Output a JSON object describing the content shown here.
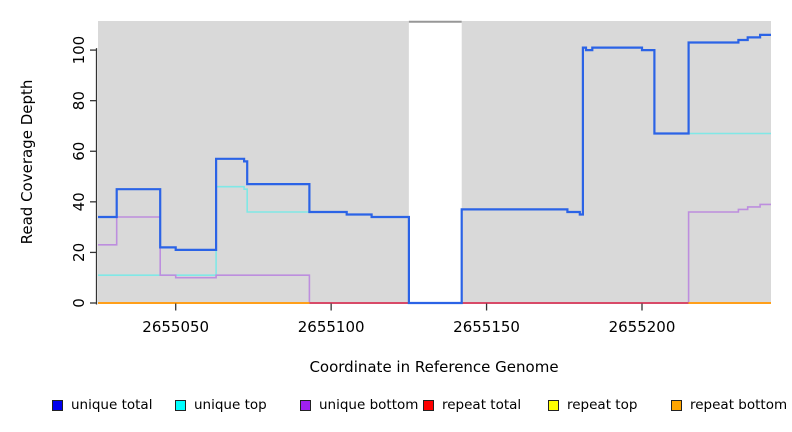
{
  "chart_data": {
    "type": "line",
    "subtype": "step-coverage-plot",
    "title": "",
    "xlabel": "Coordinate in Reference Genome",
    "ylabel": "Read Coverage Depth",
    "xlim": [
      2655025,
      2655241.5
    ],
    "ylim": [
      0,
      111.5
    ],
    "x_ticks": [
      2655050,
      2655100,
      2655150,
      2655200
    ],
    "y_ticks": [
      0,
      20,
      40,
      60,
      80,
      100
    ],
    "grid": "off",
    "panel_bg": "#d9d9d9",
    "gap_region": {
      "x_start": 2655125,
      "x_end": 2655142,
      "fill": "#ffffff",
      "top_edge_color": "#979797"
    },
    "series": [
      {
        "name": "unique top",
        "line_color": "#80e8e6",
        "line_width": 1.6,
        "segments": [
          [
            2655025,
            2655063,
            11
          ],
          [
            2655063,
            2655072,
            46
          ],
          [
            2655072,
            2655073,
            45
          ],
          [
            2655073,
            2655105,
            36
          ],
          [
            2655105,
            2655113,
            35
          ],
          [
            2655113,
            2655125,
            34
          ],
          [
            2655125,
            2655142,
            0
          ],
          [
            2655142,
            2655176,
            37
          ],
          [
            2655176,
            2655180,
            36
          ],
          [
            2655180,
            2655181,
            35
          ],
          [
            2655181,
            2655182,
            101
          ],
          [
            2655182,
            2655184,
            100
          ],
          [
            2655184,
            2655200,
            101
          ],
          [
            2655200,
            2655204,
            100
          ],
          [
            2655204,
            2655241.5,
            67
          ]
        ]
      },
      {
        "name": "unique bottom",
        "line_color": "#bd8ede",
        "line_width": 1.6,
        "segments": [
          [
            2655025,
            2655031,
            23
          ],
          [
            2655031,
            2655045,
            34
          ],
          [
            2655045,
            2655050,
            11
          ],
          [
            2655050,
            2655063,
            10
          ],
          [
            2655063,
            2655093,
            11
          ],
          [
            2655093,
            2655215,
            0
          ],
          [
            2655215,
            2655231,
            36
          ],
          [
            2655231,
            2655234,
            37
          ],
          [
            2655234,
            2655238,
            38
          ],
          [
            2655238,
            2655241.5,
            39
          ]
        ]
      },
      {
        "name": "repeat total",
        "line_color": "#d84a68",
        "line_width": 2,
        "segments": [
          [
            2655025,
            2655241.5,
            0
          ]
        ]
      },
      {
        "name": "repeat top",
        "line_color": "#ffee00",
        "line_width": 2,
        "segments": [
          [
            2655025,
            2655093,
            0
          ],
          [
            2655215,
            2655241.5,
            0
          ]
        ]
      },
      {
        "name": "repeat bottom",
        "line_color": "#ff9f1a",
        "line_width": 2,
        "segments": [
          [
            2655025,
            2655093,
            0
          ],
          [
            2655215,
            2655241.5,
            0
          ]
        ]
      },
      {
        "name": "unique total",
        "line_color": "#2b63e6",
        "line_width": 2.2,
        "segments": [
          [
            2655025,
            2655031,
            34
          ],
          [
            2655031,
            2655045,
            45
          ],
          [
            2655045,
            2655050,
            22
          ],
          [
            2655050,
            2655063,
            21
          ],
          [
            2655063,
            2655072,
            57
          ],
          [
            2655072,
            2655073,
            56
          ],
          [
            2655073,
            2655093,
            47
          ],
          [
            2655093,
            2655105,
            36
          ],
          [
            2655105,
            2655113,
            35
          ],
          [
            2655113,
            2655125,
            34
          ],
          [
            2655125,
            2655142,
            0
          ],
          [
            2655142,
            2655176,
            37
          ],
          [
            2655176,
            2655180,
            36
          ],
          [
            2655180,
            2655181,
            35
          ],
          [
            2655181,
            2655182,
            101
          ],
          [
            2655182,
            2655184,
            100
          ],
          [
            2655184,
            2655200,
            101
          ],
          [
            2655200,
            2655204,
            100
          ],
          [
            2655204,
            2655215,
            67
          ],
          [
            2655215,
            2655231,
            103
          ],
          [
            2655231,
            2655234,
            104
          ],
          [
            2655234,
            2655238,
            105
          ],
          [
            2655238,
            2655241.5,
            106
          ]
        ]
      }
    ]
  },
  "legend": {
    "items": [
      {
        "label": "unique total",
        "color": "#0000ee"
      },
      {
        "label": "unique top",
        "color": "#00ffff"
      },
      {
        "label": "unique bottom",
        "color": "#a020f0"
      },
      {
        "label": "repeat total",
        "color": "#ff0000"
      },
      {
        "label": "repeat top",
        "color": "#ffff00"
      },
      {
        "label": "repeat bottom",
        "color": "#ffa500"
      }
    ]
  }
}
